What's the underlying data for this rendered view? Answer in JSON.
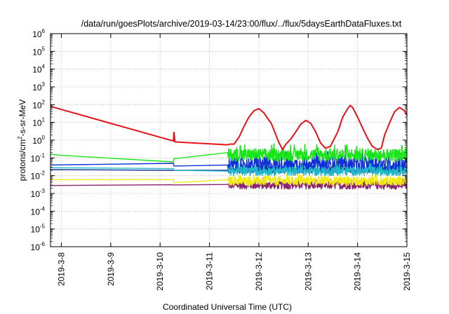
{
  "chart_data": {
    "type": "line",
    "title": "/data/run/goesPlots/archive/2019-03-14/23:00/flux/../flux/5daysEarthDataFluxes.txt",
    "xlabel": "Coordinated Universal Time (UTC)",
    "ylabel": "protons/cm²-s-sr-MeV",
    "yscale": "log",
    "ylim": [
      1e-06,
      1000000.0
    ],
    "xlim": [
      -0.22,
      7.0
    ],
    "x_unit": "days since 2019-3-8",
    "grid": true,
    "legend": "none",
    "y_ticks": [
      {
        "exp": -6
      },
      {
        "exp": -5
      },
      {
        "exp": -4
      },
      {
        "exp": -3
      },
      {
        "exp": -2
      },
      {
        "exp": -1
      },
      {
        "exp": 0
      },
      {
        "exp": 1
      },
      {
        "exp": 2
      },
      {
        "exp": 3
      },
      {
        "exp": 4
      },
      {
        "exp": 5
      },
      {
        "exp": 6
      }
    ],
    "y_tick_base": "10",
    "x_ticks": [
      {
        "label": "2019-3-8",
        "x": 0
      },
      {
        "label": "2019-3-9",
        "x": 1
      },
      {
        "label": "2019-3-10",
        "x": 2
      },
      {
        "label": "2019-3-11",
        "x": 3
      },
      {
        "label": "2019-3-12",
        "x": 4
      },
      {
        "label": "2019-3-13",
        "x": 5
      },
      {
        "label": "2019-3-14",
        "x": 6
      },
      {
        "label": "2019-3-15",
        "x": 7
      }
    ],
    "series": [
      {
        "color": "#e8121a",
        "points": [
          [
            -0.22,
            80
          ],
          [
            2.27,
            0.9
          ],
          [
            2.28,
            2.8
          ],
          [
            2.3,
            0.8
          ],
          [
            3.37,
            0.55
          ],
          [
            3.42,
            0.6
          ],
          [
            3.5,
            0.6
          ],
          [
            3.6,
            1.5
          ],
          [
            3.7,
            6
          ],
          [
            3.8,
            20
          ],
          [
            3.9,
            45
          ],
          [
            4.0,
            60
          ],
          [
            4.1,
            35
          ],
          [
            4.2,
            14
          ],
          [
            4.25,
            9
          ],
          [
            4.32,
            3
          ],
          [
            4.4,
            0.8
          ],
          [
            4.48,
            0.3
          ],
          [
            4.55,
            0.6
          ],
          [
            4.65,
            1.2
          ],
          [
            4.75,
            3
          ],
          [
            4.85,
            8
          ],
          [
            4.95,
            13
          ],
          [
            5.05,
            9
          ],
          [
            5.15,
            3
          ],
          [
            5.25,
            0.7
          ],
          [
            5.35,
            0.35
          ],
          [
            5.45,
            0.45
          ],
          [
            5.6,
            3
          ],
          [
            5.7,
            20
          ],
          [
            5.8,
            60
          ],
          [
            5.85,
            90
          ],
          [
            5.9,
            70
          ],
          [
            6.0,
            20
          ],
          [
            6.1,
            5
          ],
          [
            6.2,
            1.3
          ],
          [
            6.3,
            0.45
          ],
          [
            6.4,
            0.3
          ],
          [
            6.48,
            0.35
          ],
          [
            6.55,
            2
          ],
          [
            6.65,
            10
          ],
          [
            6.75,
            40
          ],
          [
            6.85,
            70
          ],
          [
            6.95,
            45
          ],
          [
            7.0,
            25
          ]
        ]
      },
      {
        "color": "#19e619",
        "base": 0.15,
        "noise_decades": 0.35,
        "points": [
          [
            -0.22,
            0.16
          ],
          [
            0.0,
            0.14
          ],
          [
            2.27,
            0.06
          ],
          [
            2.28,
            0.09
          ],
          [
            3.37,
            0.2
          ]
        ]
      },
      {
        "color": "#20b8c8",
        "base": 0.018,
        "noise_decades": 0.25,
        "points": [
          [
            -0.22,
            0.028
          ],
          [
            2.27,
            0.025
          ],
          [
            2.28,
            0.02
          ],
          [
            3.37,
            0.018
          ]
        ]
      },
      {
        "color": "#1030d8",
        "base": 0.04,
        "noise_decades": 0.45,
        "points": [
          [
            -0.22,
            0.04
          ],
          [
            2.27,
            0.05
          ],
          [
            2.28,
            0.035
          ],
          [
            3.37,
            0.04
          ]
        ]
      },
      {
        "color": "#10309a",
        "base": 0.022,
        "noise_decades": 0.2,
        "points": [
          [
            -0.22,
            0.022
          ],
          [
            2.27,
            0.02
          ],
          [
            2.28,
            0.02
          ],
          [
            3.37,
            0.02
          ]
        ]
      },
      {
        "color": "#f0ea10",
        "base": 0.005,
        "noise_decades": 0.25,
        "points": [
          [
            -0.22,
            0.006
          ],
          [
            2.27,
            0.006
          ],
          [
            2.28,
            0.004
          ],
          [
            3.37,
            0.006
          ]
        ]
      },
      {
        "color": "#8a2270",
        "base": 0.0029,
        "noise_decades": 0.22,
        "points": [
          [
            -0.22,
            0.0028
          ],
          [
            2.27,
            0.0031
          ],
          [
            2.28,
            0.003
          ],
          [
            3.37,
            0.0032
          ]
        ]
      }
    ]
  }
}
